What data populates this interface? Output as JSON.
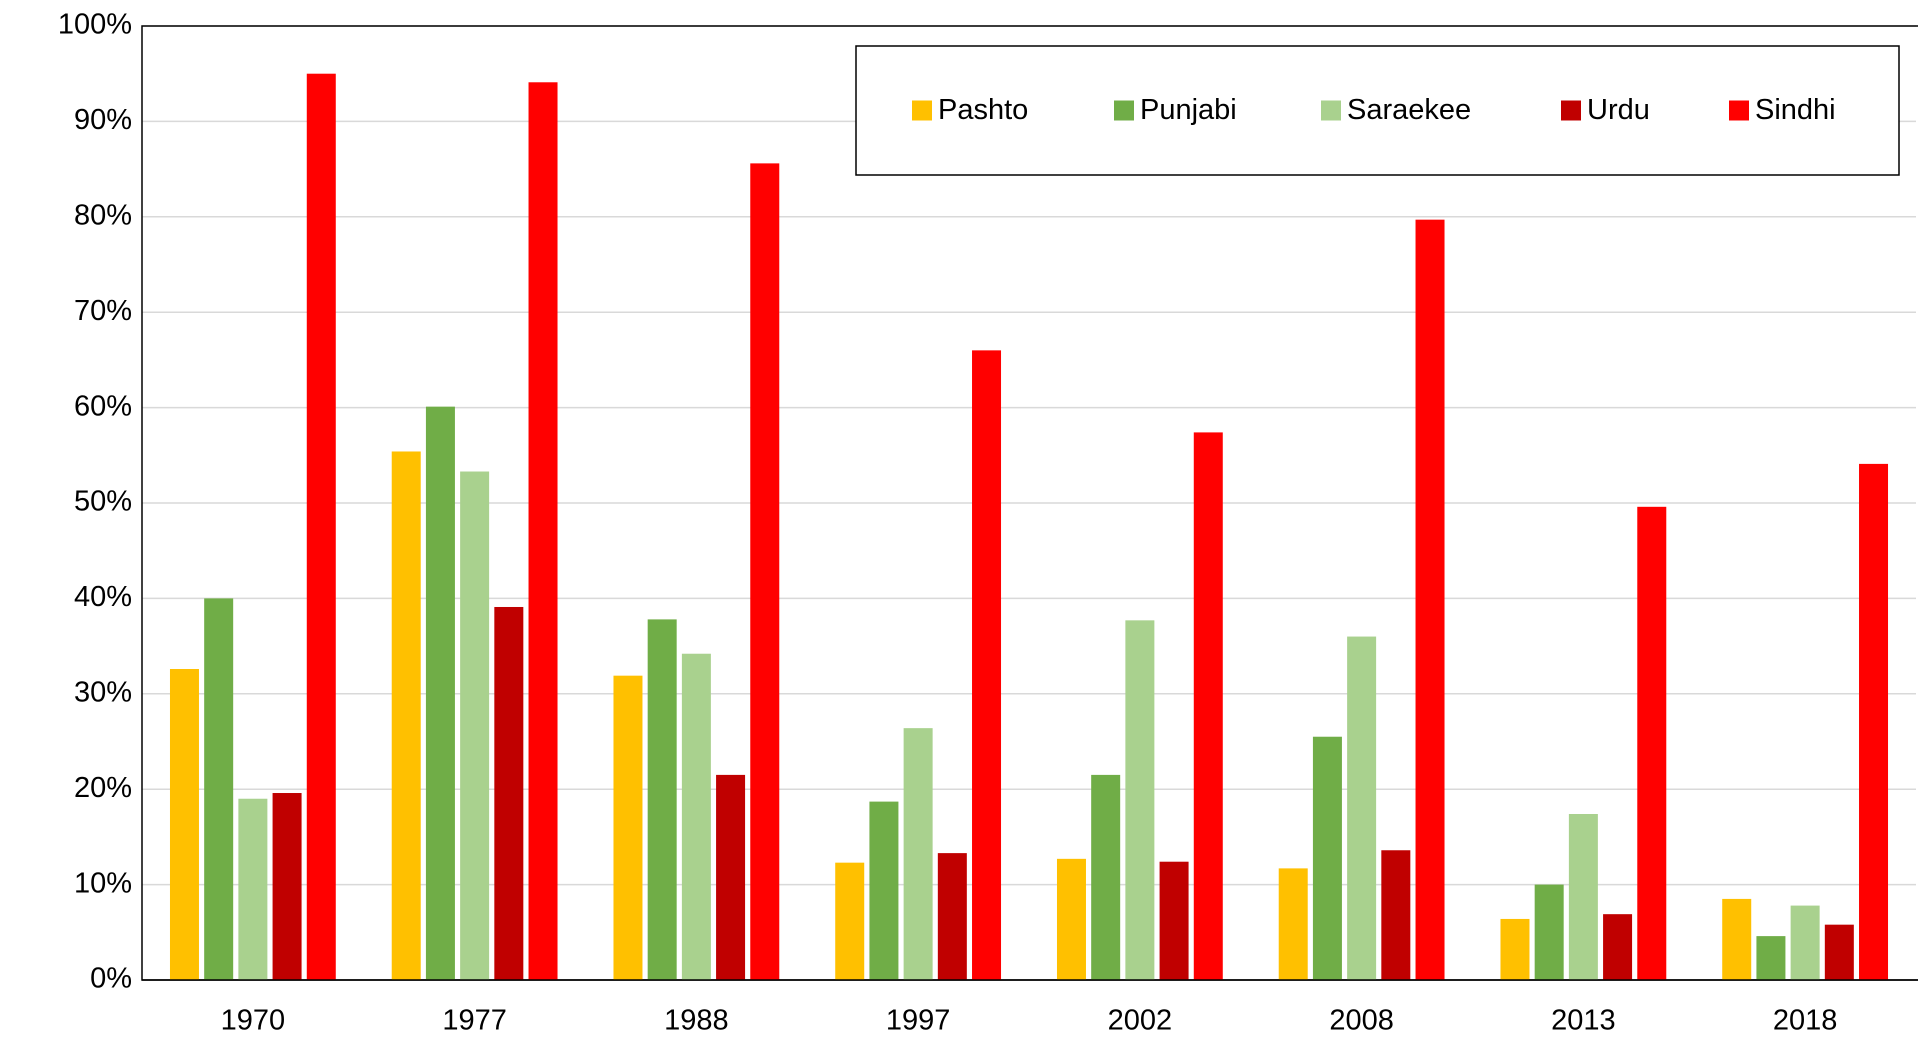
{
  "chart_data": {
    "type": "bar",
    "categories": [
      "1970",
      "1977",
      "1988",
      "1997",
      "2002",
      "2008",
      "2013",
      "2018"
    ],
    "series": [
      {
        "name": "Pashto",
        "color": "#ffc000",
        "values": [
          32.6,
          55.4,
          31.9,
          12.3,
          12.7,
          11.7,
          6.4,
          8.5
        ]
      },
      {
        "name": "Punjabi",
        "color": "#70ad47",
        "values": [
          40,
          60.1,
          37.8,
          18.7,
          21.5,
          25.5,
          10,
          4.6
        ]
      },
      {
        "name": "Saraekee",
        "color": "#a9d18e",
        "values": [
          19,
          53.3,
          34.2,
          26.4,
          37.7,
          36,
          17.4,
          7.8
        ]
      },
      {
        "name": "Urdu",
        "color": "#c00000",
        "values": [
          19.6,
          39.1,
          21.5,
          13.3,
          12.4,
          13.6,
          6.9,
          5.8
        ]
      },
      {
        "name": "Sindhi",
        "color": "#ff0000",
        "values": [
          95,
          94.1,
          85.6,
          66,
          57.4,
          79.7,
          49.6,
          54.1
        ]
      }
    ],
    "ylim": [
      0,
      100
    ],
    "yticks": [
      {
        "value": 0,
        "label": "0%"
      },
      {
        "value": 10,
        "label": "10%"
      },
      {
        "value": 20,
        "label": "20%"
      },
      {
        "value": 30,
        "label": "30%"
      },
      {
        "value": 40,
        "label": "40%"
      },
      {
        "value": 50,
        "label": "50%"
      },
      {
        "value": 60,
        "label": "60%"
      },
      {
        "value": 70,
        "label": "70%"
      },
      {
        "value": 80,
        "label": "80%"
      },
      {
        "value": 90,
        "label": "90%"
      },
      {
        "value": 100,
        "label": "100%"
      }
    ],
    "grid": true,
    "legend": "upper right"
  }
}
